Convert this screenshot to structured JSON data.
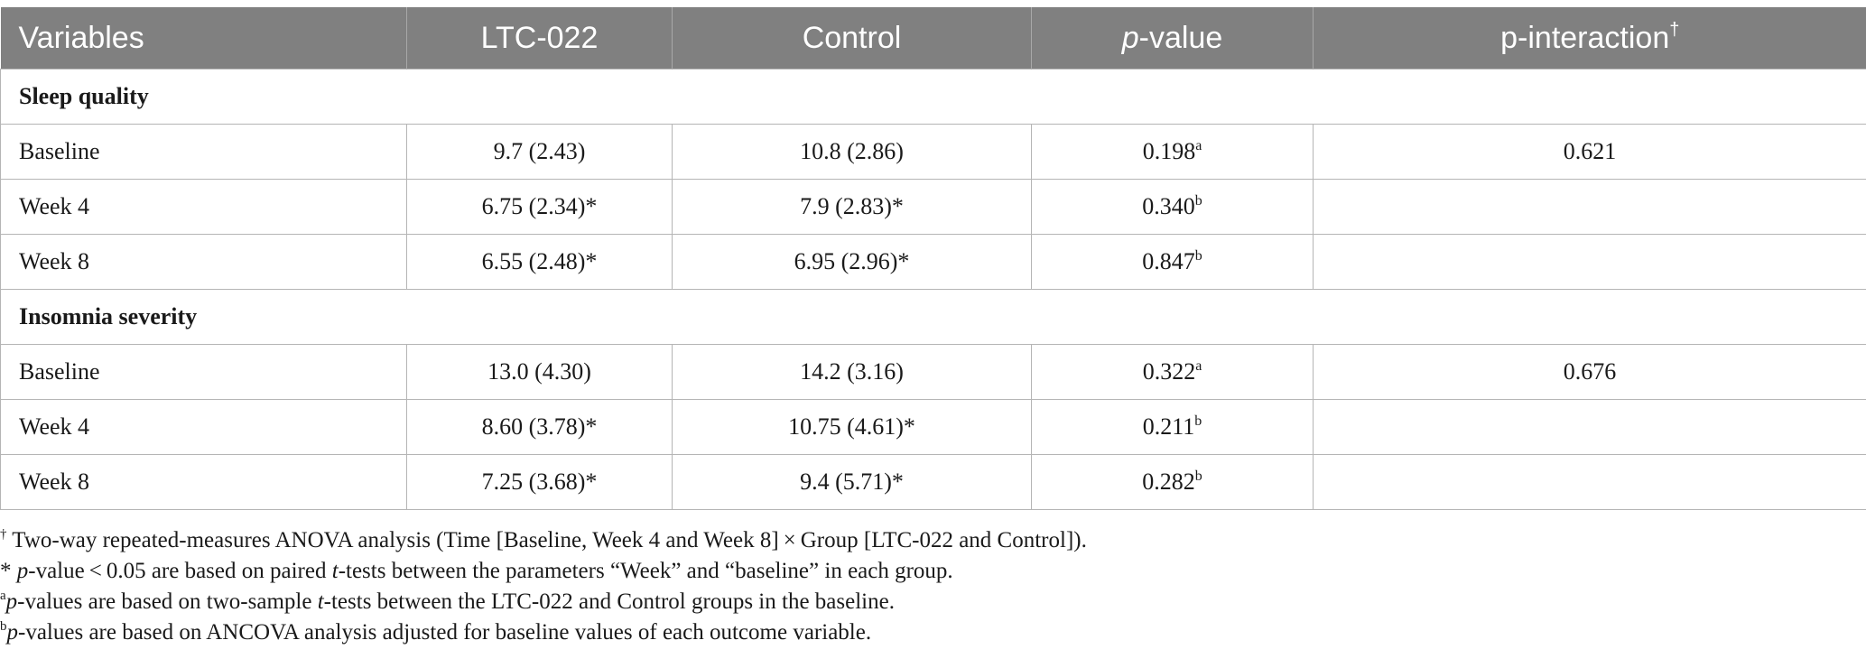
{
  "table": {
    "headers": {
      "variables": "Variables",
      "ltc": "LTC-022",
      "control": "Control",
      "pvalue_p": "p",
      "pvalue_rest": "-value",
      "pinteraction": "p-interaction",
      "pinteraction_mark": "†"
    },
    "sections": [
      {
        "title": "Sleep quality",
        "rows": [
          {
            "label": "Baseline",
            "ltc": "9.7 (2.43)",
            "control": "10.8 (2.86)",
            "pvalue": "0.198",
            "psup": "a",
            "pint": "0.621"
          },
          {
            "label": "Week 4",
            "ltc": "6.75 (2.34)*",
            "control": "7.9 (2.83)*",
            "pvalue": "0.340",
            "psup": "b",
            "pint": ""
          },
          {
            "label": "Week 8",
            "ltc": "6.55 (2.48)*",
            "control": "6.95 (2.96)*",
            "pvalue": "0.847",
            "psup": "b",
            "pint": ""
          }
        ]
      },
      {
        "title": "Insomnia severity",
        "rows": [
          {
            "label": "Baseline",
            "ltc": "13.0 (4.30)",
            "control": "14.2 (3.16)",
            "pvalue": "0.322",
            "psup": "a",
            "pint": "0.676"
          },
          {
            "label": "Week 4",
            "ltc": "8.60 (3.78)*",
            "control": "10.75 (4.61)*",
            "pvalue": "0.211",
            "psup": "b",
            "pint": ""
          },
          {
            "label": "Week 8",
            "ltc": "7.25 (3.68)*",
            "control": "9.4 (5.71)*",
            "pvalue": "0.282",
            "psup": "b",
            "pint": ""
          }
        ]
      }
    ]
  },
  "footnotes": {
    "dagger_mark": "†",
    "dagger_text": " Two-way repeated-measures ANOVA analysis (Time [Baseline, Week 4 and Week 8] × Group [LTC-022 and Control]).",
    "star_prefix": "* ",
    "star_p": "p",
    "star_mid": "-value < 0.05 are based on paired ",
    "star_t": "t",
    "star_rest": "-tests between the parameters “Week” and “baseline” in each group.",
    "a_mark": "a",
    "a_p": "p",
    "a_mid": "-values are based on two-sample ",
    "a_t": "t",
    "a_rest": "-tests between the LTC-022 and Control groups in the baseline.",
    "b_mark": "b",
    "b_p": "p",
    "b_rest": "-values are based on ANCOVA analysis adjusted for baseline values of each outcome variable."
  }
}
